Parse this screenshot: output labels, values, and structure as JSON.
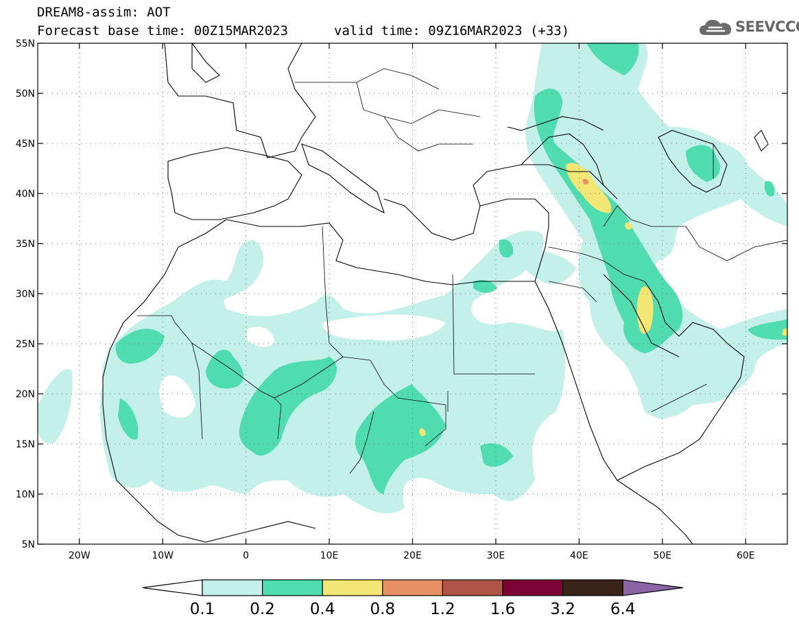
{
  "header": {
    "line1": "DREAM8-assim: AOT",
    "line2": "Forecast base time: 00Z15MAR2023",
    "line3": "valid time: 09Z16MAR2023 (+33)"
  },
  "logo": {
    "text": "SEEVCCC",
    "icon": "cloud-icon",
    "color": "#666666"
  },
  "map": {
    "lon_range": [
      -25,
      65
    ],
    "lat_range": [
      5,
      55
    ],
    "lat_ticks": [
      "55N",
      "50N",
      "45N",
      "40N",
      "35N",
      "30N",
      "25N",
      "20N",
      "15N",
      "10N",
      "5N"
    ],
    "lon_ticks": [
      "20W",
      "10W",
      "0",
      "10E",
      "20E",
      "30E",
      "40E",
      "50E",
      "60E"
    ],
    "gridlines": "dotted"
  },
  "colorbar": {
    "labels": [
      "0.1",
      "0.2",
      "0.4",
      "0.8",
      "1.2",
      "1.6",
      "3.2",
      "6.4"
    ],
    "colors": [
      "#c4f0ea",
      "#4fdcae",
      "#f3e675",
      "#e79065",
      "#b15448",
      "#7c0333",
      "#3a2418",
      "#8b64a6"
    ]
  }
}
